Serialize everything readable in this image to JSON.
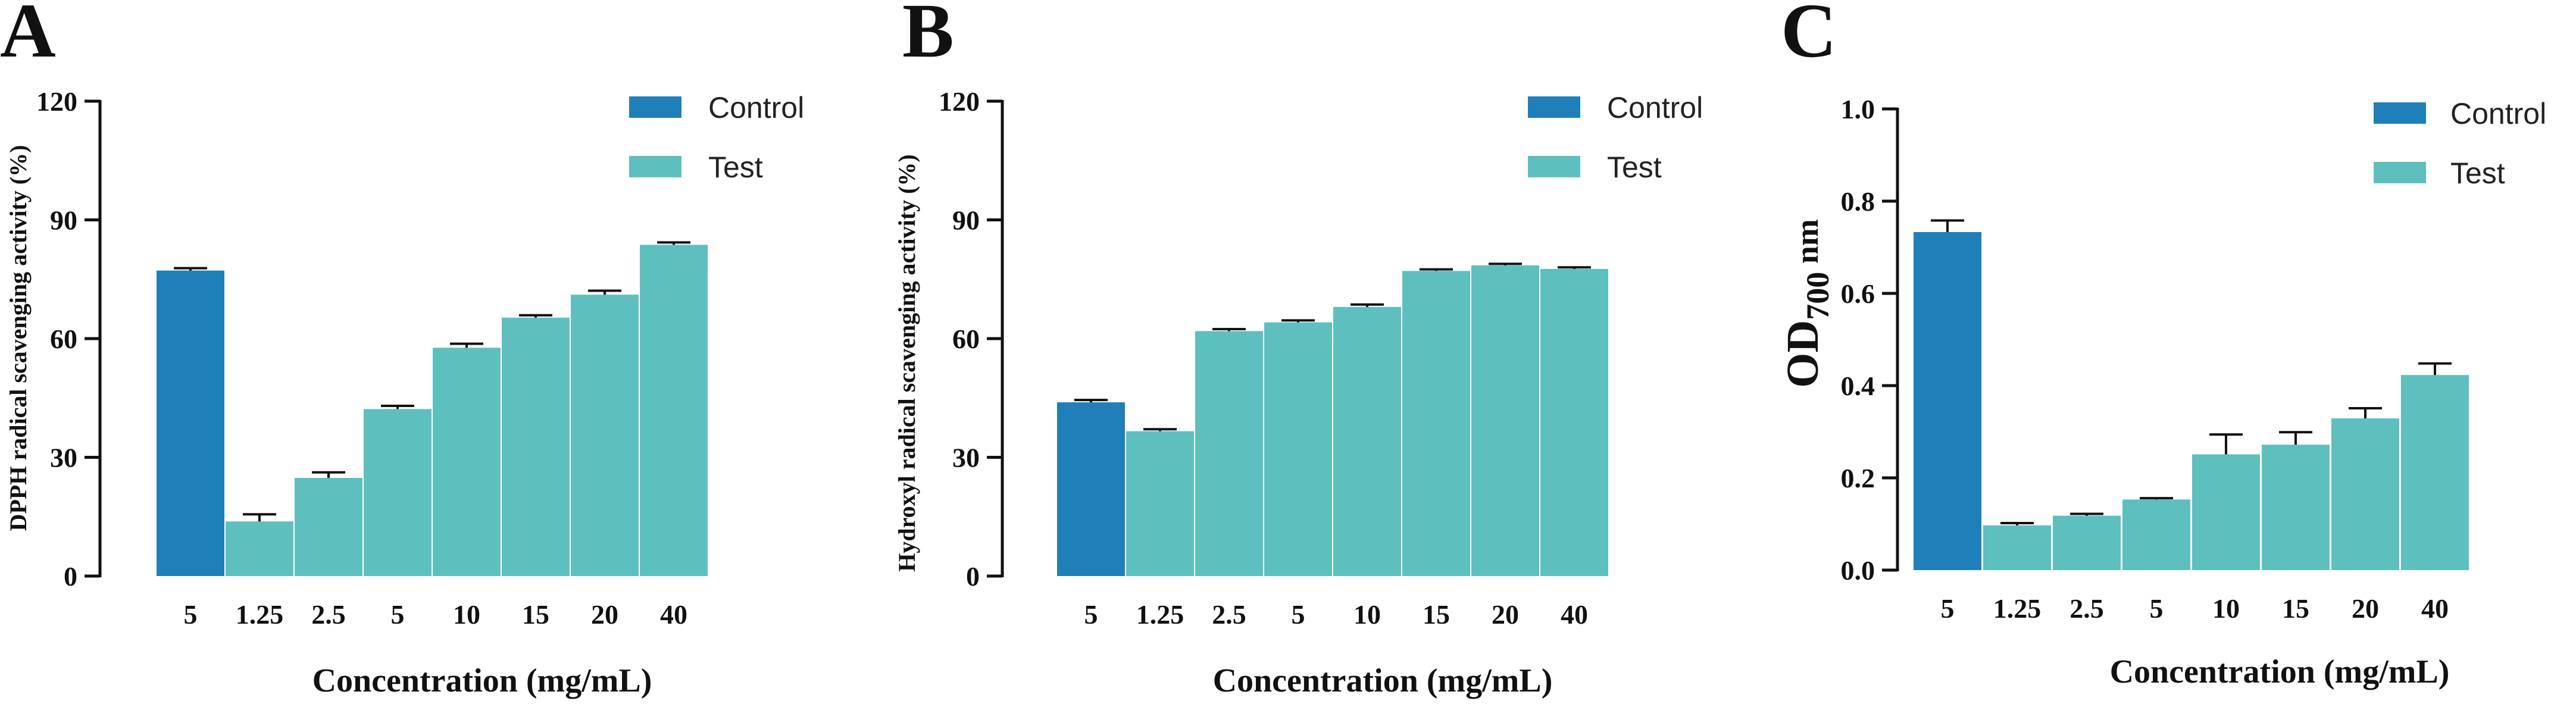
{
  "colors": {
    "control": "#1f7fb8",
    "test": "#5ebfbf",
    "axis": "#111111"
  },
  "chart_data": [
    {
      "panel": "A",
      "type": "bar",
      "ylabel": "DPPH radical scavenging activity (%)",
      "xlabel": "Concentration (mg/mL)",
      "ylim": [
        0,
        120
      ],
      "yticks": [
        0,
        30,
        60,
        90,
        120
      ],
      "ytick_labels": [
        "0",
        "30",
        "60",
        "90",
        "120"
      ],
      "categories": [
        "5",
        "1.25",
        "2.5",
        "5",
        "10",
        "15",
        "20",
        "40"
      ],
      "values": [
        77.2,
        13.8,
        24.8,
        42.2,
        57.7,
        65.3,
        71.1,
        83.7
      ],
      "errors": [
        0.6,
        1.8,
        1.4,
        0.8,
        1.0,
        0.6,
        1.0,
        0.6
      ],
      "groups": [
        "Control",
        "Test",
        "Test",
        "Test",
        "Test",
        "Test",
        "Test",
        "Test"
      ],
      "legend": [
        "Control",
        "Test"
      ]
    },
    {
      "panel": "B",
      "type": "bar",
      "ylabel": "Hydroxyl radical scavenging activity (%)",
      "xlabel": "Concentration (mg/mL)",
      "ylim": [
        0,
        120
      ],
      "yticks": [
        0,
        30,
        60,
        90,
        120
      ],
      "ytick_labels": [
        "0",
        "30",
        "60",
        "90",
        "120"
      ],
      "categories": [
        "5",
        "1.25",
        "2.5",
        "5",
        "10",
        "15",
        "20",
        "40"
      ],
      "values": [
        43.9,
        36.6,
        61.9,
        64.1,
        68.0,
        77.1,
        78.5,
        77.6
      ],
      "errors": [
        0.6,
        0.5,
        0.5,
        0.5,
        0.6,
        0.4,
        0.4,
        0.4
      ],
      "groups": [
        "Control",
        "Test",
        "Test",
        "Test",
        "Test",
        "Test",
        "Test",
        "Test"
      ],
      "legend": [
        "Control",
        "Test"
      ]
    },
    {
      "panel": "C",
      "type": "bar",
      "ylabel": "OD",
      "ylabel_sub": "700",
      "ylabel_suffix": " nm",
      "xlabel": "Concentration (mg/mL)",
      "ylim": [
        0,
        1.0
      ],
      "yticks": [
        0,
        0.2,
        0.4,
        0.6,
        0.8,
        1.0
      ],
      "ytick_labels": [
        "0.0",
        "0.2",
        "0.4",
        "0.6",
        "0.8",
        "1.0"
      ],
      "categories": [
        "5",
        "1.25",
        "2.5",
        "5",
        "10",
        "15",
        "20",
        "40"
      ],
      "values": [
        0.733,
        0.097,
        0.118,
        0.153,
        0.251,
        0.272,
        0.329,
        0.423
      ],
      "errors": [
        0.025,
        0.005,
        0.004,
        0.003,
        0.043,
        0.027,
        0.022,
        0.025
      ],
      "groups": [
        "Control",
        "Test",
        "Test",
        "Test",
        "Test",
        "Test",
        "Test",
        "Test"
      ],
      "legend": [
        "Control",
        "Test"
      ]
    }
  ]
}
